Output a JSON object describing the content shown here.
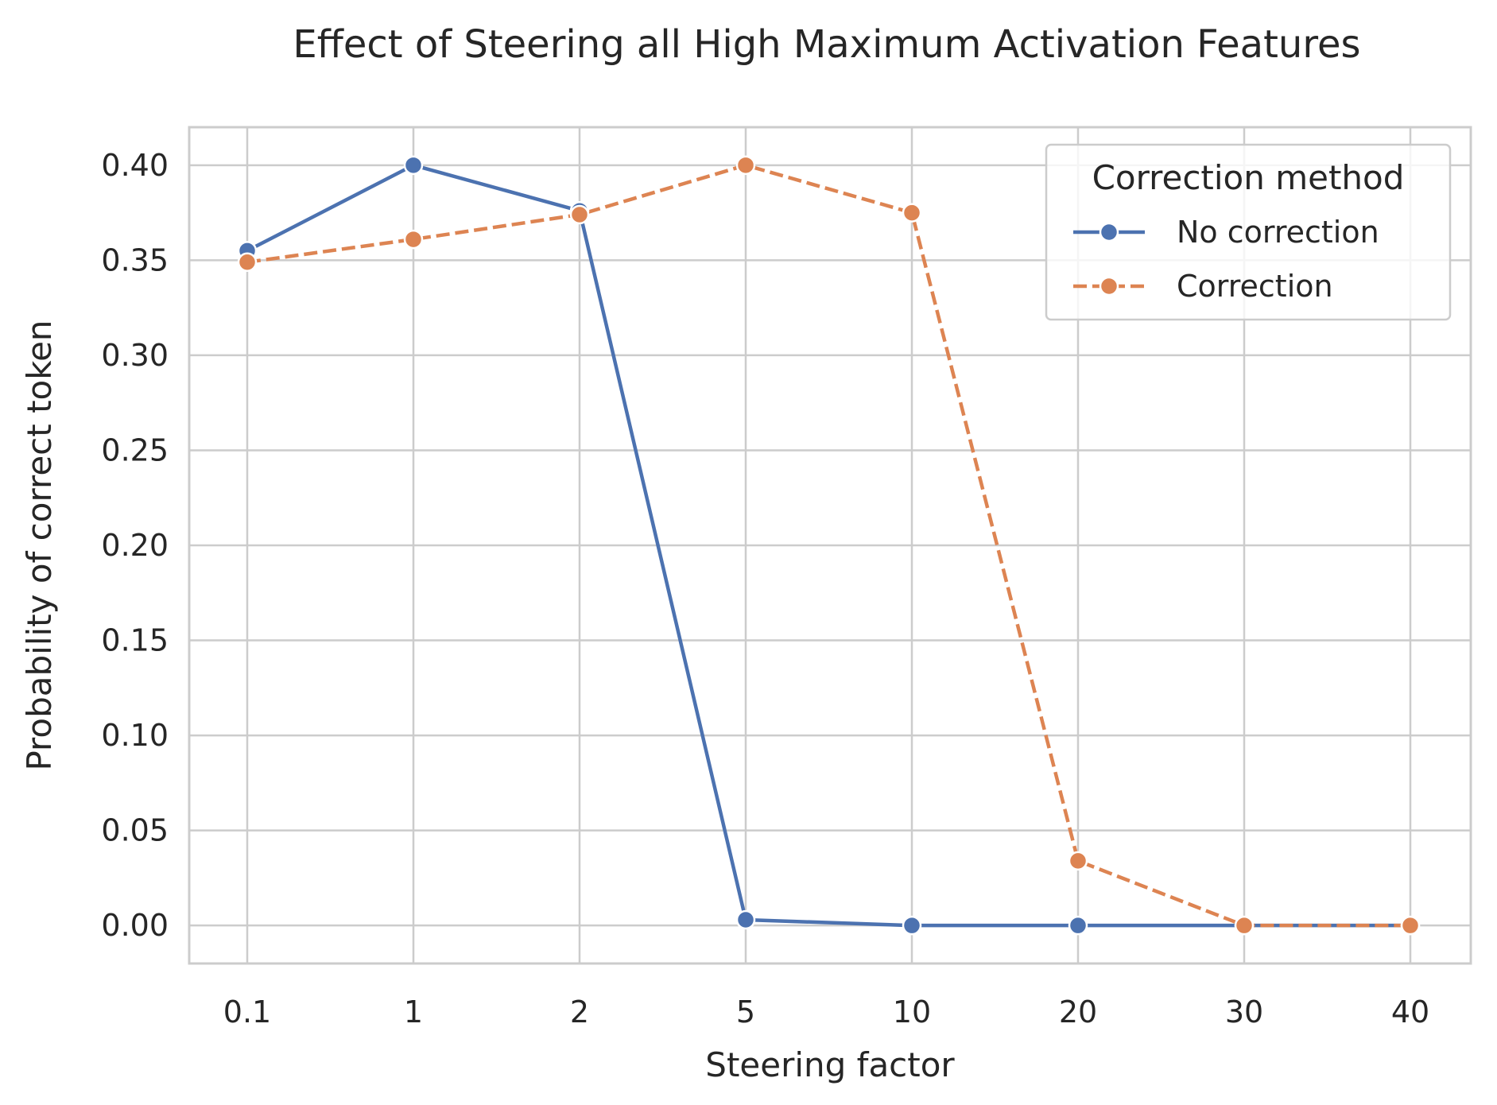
{
  "chart_data": {
    "type": "line",
    "title": "Effect of Steering all High Maximum Activation Features",
    "xlabel": "Steering factor",
    "ylabel": "Probability of correct token",
    "categories": [
      "0.1",
      "1",
      "2",
      "5",
      "10",
      "20",
      "30",
      "40"
    ],
    "ylim": [
      -0.02,
      0.42
    ],
    "yticks": [
      "0.00",
      "0.05",
      "0.10",
      "0.15",
      "0.20",
      "0.25",
      "0.30",
      "0.35",
      "0.40"
    ],
    "grid": true,
    "legend": {
      "title": "Correction method",
      "position": "top-right"
    },
    "series": [
      {
        "name": "No correction",
        "values": [
          0.355,
          0.4,
          0.376,
          0.003,
          0.0,
          0.0,
          0.0,
          0.0
        ],
        "color": "#4c72b0",
        "style": "solid",
        "marker": "circle"
      },
      {
        "name": "Correction",
        "values": [
          0.349,
          0.361,
          0.374,
          0.4,
          0.375,
          0.034,
          0.0,
          0.0
        ],
        "color": "#dd8452",
        "style": "dashed",
        "marker": "circle"
      }
    ]
  }
}
